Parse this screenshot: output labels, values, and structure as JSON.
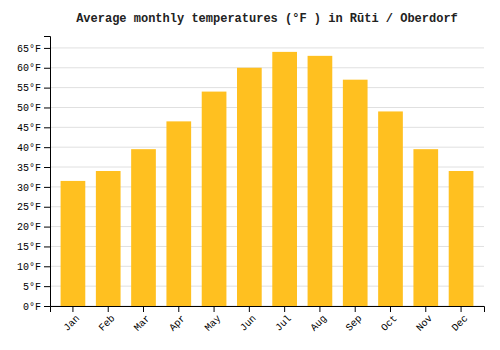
{
  "chart_data": {
    "type": "bar",
    "title": "Average monthly temperatures (°F ) in Rūti / Oberdorf",
    "categories": [
      "Jan",
      "Feb",
      "Mar",
      "Apr",
      "May",
      "Jun",
      "Jul",
      "Aug",
      "Sep",
      "Oct",
      "Nov",
      "Dec"
    ],
    "values": [
      31.5,
      34.0,
      39.5,
      46.5,
      54.0,
      60.0,
      64.0,
      63.0,
      57.0,
      49.0,
      39.5,
      34.0
    ],
    "color": "#FFC020",
    "ylim": [
      0,
      68
    ],
    "yticks": [
      {
        "value": 0,
        "label": "0°F"
      },
      {
        "value": 5,
        "label": "5°F"
      },
      {
        "value": 10,
        "label": "10°F"
      },
      {
        "value": 15,
        "label": "15°F"
      },
      {
        "value": 20,
        "label": "20°F"
      },
      {
        "value": 25,
        "label": "25°F"
      },
      {
        "value": 30,
        "label": "30°F"
      },
      {
        "value": 35,
        "label": "35°F"
      },
      {
        "value": 40,
        "label": "40°F"
      },
      {
        "value": 45,
        "label": "45°F"
      },
      {
        "value": 50,
        "label": "50°F"
      },
      {
        "value": 55,
        "label": "55°F"
      },
      {
        "value": 60,
        "label": "60°F"
      },
      {
        "value": 65,
        "label": "65°F"
      }
    ],
    "grid": true
  }
}
